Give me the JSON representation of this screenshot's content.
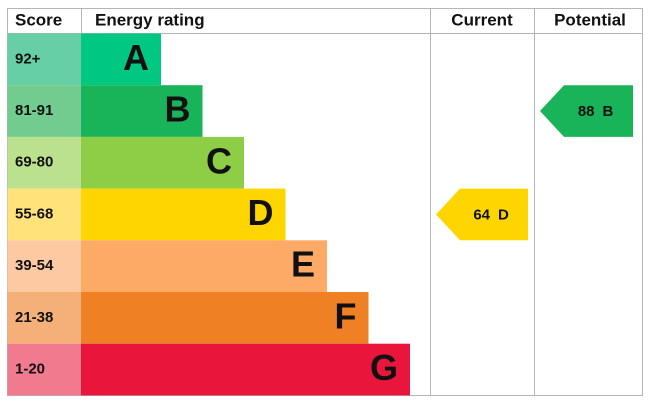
{
  "header": {
    "score": "Score",
    "rating": "Energy rating",
    "current": "Current",
    "potential": "Potential"
  },
  "bands": [
    {
      "score": "92+",
      "letter": "A",
      "color": "#00c781",
      "score_color": "#66cfa6"
    },
    {
      "score": "81-91",
      "letter": "B",
      "color": "#19b459",
      "score_color": "#72cc8f"
    },
    {
      "score": "69-80",
      "letter": "C",
      "color": "#8dce46",
      "score_color": "#bbe08e"
    },
    {
      "score": "55-68",
      "letter": "D",
      "color": "#ffd500",
      "score_color": "#ffe37a"
    },
    {
      "score": "39-54",
      "letter": "E",
      "color": "#fcaa65",
      "score_color": "#fdc9a2"
    },
    {
      "score": "21-38",
      "letter": "F",
      "color": "#ef8023",
      "score_color": "#f5b07a"
    },
    {
      "score": "1-20",
      "letter": "G",
      "color": "#e9153b",
      "score_color": "#f27a8f"
    }
  ],
  "current": {
    "value": 64,
    "letter": "D"
  },
  "potential": {
    "value": 88,
    "letter": "B"
  }
}
